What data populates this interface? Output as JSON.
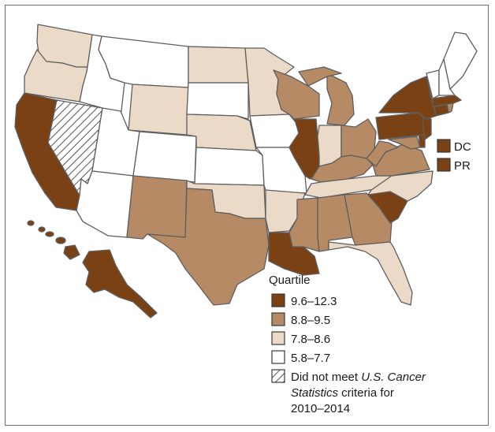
{
  "colors": {
    "q1": "#7a4214",
    "q2": "#b68a64",
    "q3": "#ecdac9",
    "q4": "#ffffff",
    "border": "#5e5e5e"
  },
  "legend": {
    "title": "Quartile",
    "items": [
      {
        "label": "9.6–12.3",
        "class": "q1"
      },
      {
        "label": "8.8–9.5",
        "class": "q2"
      },
      {
        "label": "7.8–8.6",
        "class": "q3"
      },
      {
        "label": "5.8–7.7",
        "class": "q4"
      }
    ],
    "na": {
      "line1_prefix": "Did not meet ",
      "line1_italic": "U.S. Cancer",
      "line2_italic": "Statistics",
      "line2_suffix": " criteria for",
      "line3": "2010–2014"
    }
  },
  "insets": [
    {
      "label": "DC",
      "class": "q1"
    },
    {
      "label": "PR",
      "class": "q1"
    }
  ],
  "states": {
    "WA": "q3",
    "OR": "q3",
    "CA": "q1",
    "NV": "na",
    "ID": "q4",
    "MT": "q4",
    "WY": "q3",
    "UT": "q4",
    "AZ": "q4",
    "CO": "q4",
    "NM": "q2",
    "ND": "q3",
    "SD": "q4",
    "NE": "q3",
    "KS": "q4",
    "OK": "q3",
    "TX": "q2",
    "MN": "q3",
    "IA": "q4",
    "MO": "q4",
    "AR": "q3",
    "LA": "q1",
    "WI": "q2",
    "IL": "q1",
    "MI": "q2",
    "IN": "q3",
    "OH": "q2",
    "KY": "q2",
    "TN": "q3",
    "MS": "q2",
    "AL": "q2",
    "GA": "q2",
    "FL": "q3",
    "SC": "q1",
    "NC": "q3",
    "VA": "q2",
    "WV": "q2",
    "MD": "q2",
    "DE": "q1",
    "PA": "q1",
    "NJ": "q1",
    "NY": "q1",
    "CT": "q1",
    "RI": "q2",
    "MA": "q1",
    "VT": "q4",
    "NH": "q4",
    "ME": "q4",
    "AK": "q1",
    "HI": "q1"
  }
}
